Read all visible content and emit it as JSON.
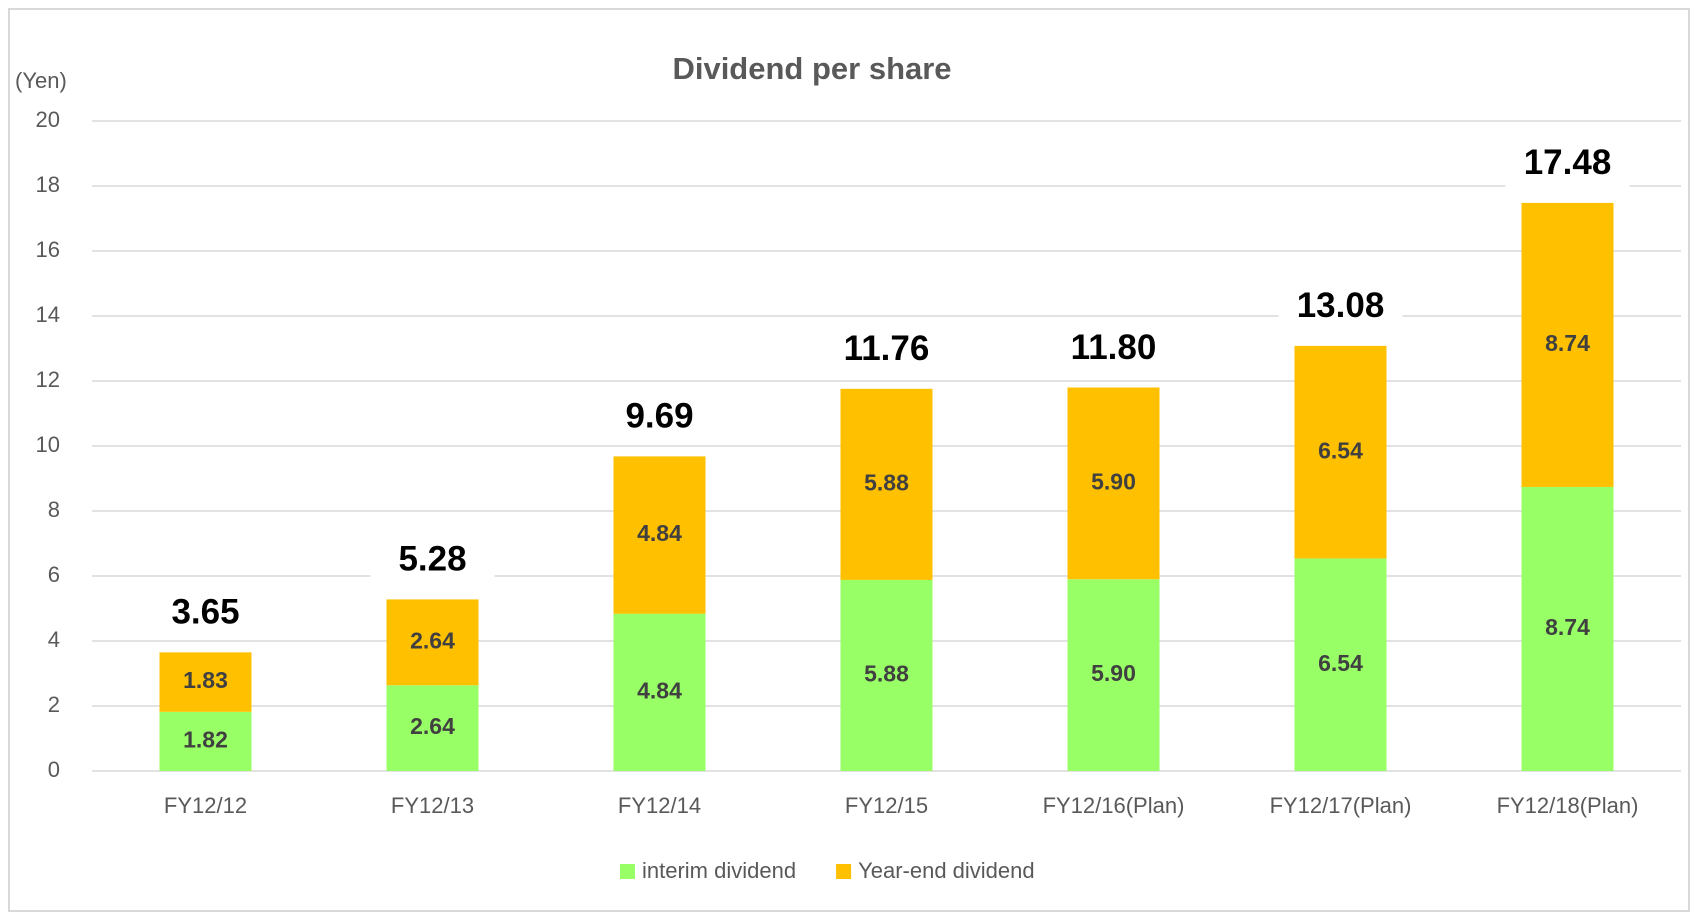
{
  "chart_data": {
    "type": "stacked_bar",
    "title": "Dividend per share",
    "y_axis_label": "(Yen)",
    "categories": [
      "FY12/12",
      "FY12/13",
      "FY12/14",
      "FY12/15",
      "FY12/16(Plan)",
      "FY12/17(Plan)",
      "FY12/18(Plan)"
    ],
    "series": [
      {
        "name": "interim dividend",
        "color": "#99ff66",
        "values": [
          1.82,
          2.64,
          4.84,
          5.88,
          5.9,
          6.54,
          8.74
        ],
        "value_labels": [
          "1.82",
          "2.64",
          "4.84",
          "5.88",
          "5.90",
          "6.54",
          "8.74"
        ]
      },
      {
        "name": "Year-end dividend",
        "color": "#ffc000",
        "values": [
          1.83,
          2.64,
          4.84,
          5.88,
          5.9,
          6.54,
          8.74
        ],
        "value_labels": [
          "1.83",
          "2.64",
          "4.84",
          "5.88",
          "5.90",
          "6.54",
          "8.74"
        ]
      }
    ],
    "totals": {
      "values": [
        3.65,
        5.28,
        9.69,
        11.76,
        11.8,
        13.08,
        17.48
      ],
      "value_labels": [
        "3.65",
        "5.28",
        "9.69",
        "11.76",
        "11.80",
        "13.08",
        "17.48"
      ]
    },
    "ylim": [
      0,
      20
    ],
    "yticks": [
      0,
      2,
      4,
      6,
      8,
      10,
      12,
      14,
      16,
      18,
      20
    ],
    "grid": true,
    "legend": "bottom"
  }
}
